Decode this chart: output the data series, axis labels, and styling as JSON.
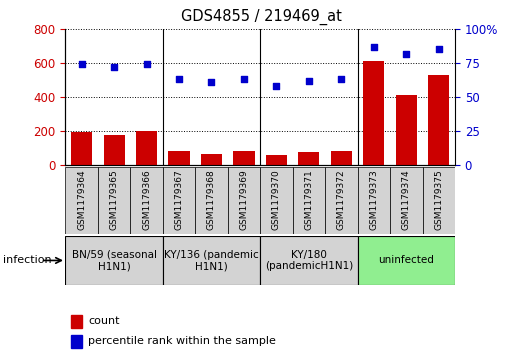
{
  "title": "GDS4855 / 219469_at",
  "samples": [
    "GSM1179364",
    "GSM1179365",
    "GSM1179366",
    "GSM1179367",
    "GSM1179368",
    "GSM1179369",
    "GSM1179370",
    "GSM1179371",
    "GSM1179372",
    "GSM1179373",
    "GSM1179374",
    "GSM1179375"
  ],
  "counts": [
    197,
    178,
    200,
    82,
    67,
    85,
    60,
    75,
    82,
    615,
    410,
    530
  ],
  "percentiles": [
    74,
    72,
    74,
    63,
    61,
    63,
    58,
    62,
    63,
    87,
    82,
    85
  ],
  "bar_color": "#cc0000",
  "dot_color": "#0000cc",
  "left_ylim": [
    0,
    800
  ],
  "right_ylim": [
    0,
    100
  ],
  "left_yticks": [
    0,
    200,
    400,
    600,
    800
  ],
  "right_yticks": [
    0,
    25,
    50,
    75,
    100
  ],
  "right_yticklabels": [
    "0",
    "25",
    "50",
    "75",
    "100%"
  ],
  "groups": [
    {
      "label": "BN/59 (seasonal\nH1N1)",
      "start": 0,
      "end": 3,
      "color": "#d3d3d3"
    },
    {
      "label": "KY/136 (pandemic\nH1N1)",
      "start": 3,
      "end": 6,
      "color": "#d3d3d3"
    },
    {
      "label": "KY/180\n(pandemicH1N1)",
      "start": 6,
      "end": 9,
      "color": "#d3d3d3"
    },
    {
      "label": "uninfected",
      "start": 9,
      "end": 12,
      "color": "#90ee90"
    }
  ],
  "infection_label": "infection",
  "legend_count_label": "count",
  "legend_percentile_label": "percentile rank within the sample",
  "background_color": "#ffffff"
}
